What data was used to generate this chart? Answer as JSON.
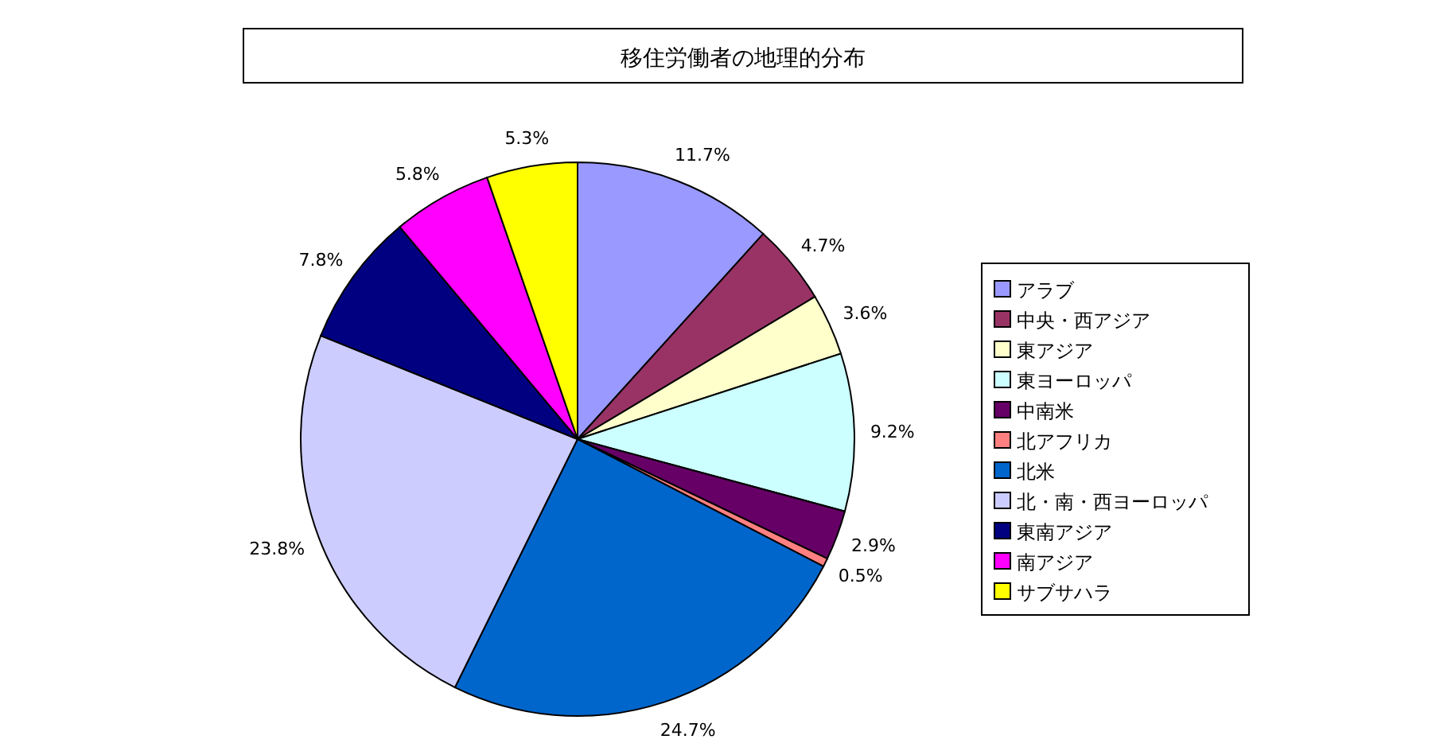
{
  "chart_data": {
    "type": "pie",
    "title": "移住労働者の地理的分布",
    "categories": [
      "アラブ",
      "中央・西アジア",
      "東アジア",
      "東ヨーロッパ",
      "中南米",
      "北アフリカ",
      "北米",
      "北・南・西ヨーロッパ",
      "東南アジア",
      "南アジア",
      "サブサハラ"
    ],
    "values": [
      11.7,
      4.7,
      3.6,
      9.2,
      2.9,
      0.5,
      24.7,
      23.8,
      7.8,
      5.8,
      5.3
    ],
    "colors": [
      "#9999ff",
      "#993366",
      "#ffffcc",
      "#ccffff",
      "#660066",
      "#ff8080",
      "#0066cc",
      "#ccccff",
      "#000080",
      "#ff00ff",
      "#ffff00"
    ],
    "value_labels": [
      "11.7%",
      "4.7%",
      "3.6%",
      "9.2%",
      "2.9%",
      "0.5%",
      "24.7%",
      "23.8%",
      "7.8%",
      "5.8%",
      "5.3%"
    ],
    "legend": "right"
  }
}
